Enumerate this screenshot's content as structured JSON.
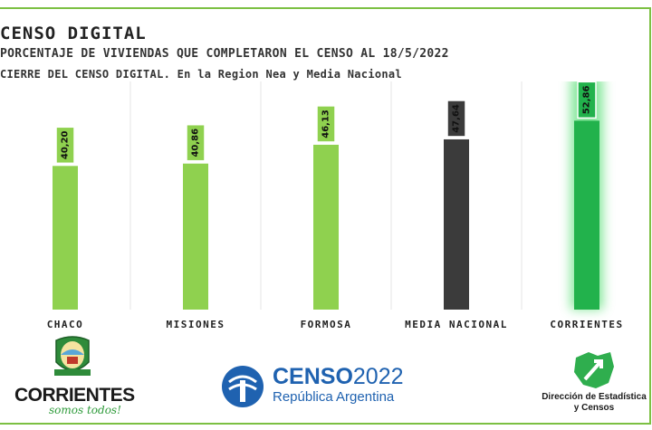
{
  "title": "CENSO DIGITAL",
  "subtitle_line1": "PORCENTAJE DE VIVIENDAS QUE COMPLETARON EL CENSO AL 18/5/2022",
  "subtitle_line2": "CIERRE DEL CENSO DIGITAL. En la Region Nea y Media Nacional",
  "chart_data": {
    "type": "bar",
    "categories": [
      "CHACO",
      "MISIONES",
      "FORMOSA",
      "MEDIA NACIONAL",
      "CORRIENTES"
    ],
    "values": [
      40.2,
      40.86,
      46.13,
      47.64,
      52.86
    ],
    "value_labels": [
      "40,20",
      "40,86",
      "46,13",
      "47,64",
      "52,86"
    ],
    "colors": [
      "#8fd14f",
      "#8fd14f",
      "#8fd14f",
      "#3b3b3b",
      "#22b24c"
    ],
    "highlight": "CORRIENTES",
    "ylim": [
      0,
      60
    ],
    "grid": false,
    "legend": "none"
  },
  "logos": {
    "left": {
      "name": "CORRIENTES",
      "slogan": "somos todos!",
      "icon": "coat-of-arms-icon"
    },
    "center": {
      "word": "CENSO",
      "year": "2022",
      "country": "República Argentina",
      "icon": "censo-emblem-icon"
    },
    "right": {
      "line1": "Dirección de Estadística",
      "line2": "y Censos",
      "icon": "map-arrow-icon"
    }
  }
}
